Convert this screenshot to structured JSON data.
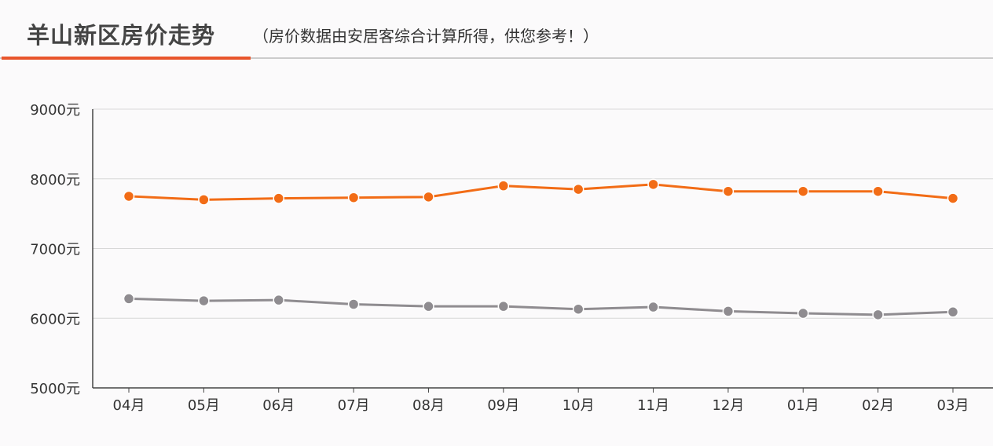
{
  "header": {
    "title": "羊山新区房价走势",
    "subtitle": "（房价数据由安居客综合计算所得，供您参考！）",
    "accent_color": "#e8552c"
  },
  "chart_data": {
    "type": "line",
    "categories": [
      "04月",
      "05月",
      "06月",
      "07月",
      "08月",
      "09月",
      "10月",
      "11月",
      "12月",
      "01月",
      "02月",
      "03月"
    ],
    "series": [
      {
        "color": "#f26c16",
        "values": [
          7750,
          7700,
          7720,
          7730,
          7740,
          7900,
          7850,
          7920,
          7820,
          7820,
          7820,
          7720
        ]
      },
      {
        "color": "#8f8c90",
        "values": [
          6280,
          6250,
          6260,
          6200,
          6170,
          6170,
          6130,
          6160,
          6100,
          6070,
          6050,
          6090
        ]
      }
    ],
    "yticks": [
      "5000元",
      "6000元",
      "7000元",
      "8000元",
      "9000元"
    ],
    "ylim": [
      5000,
      9000
    ],
    "grid": true
  }
}
